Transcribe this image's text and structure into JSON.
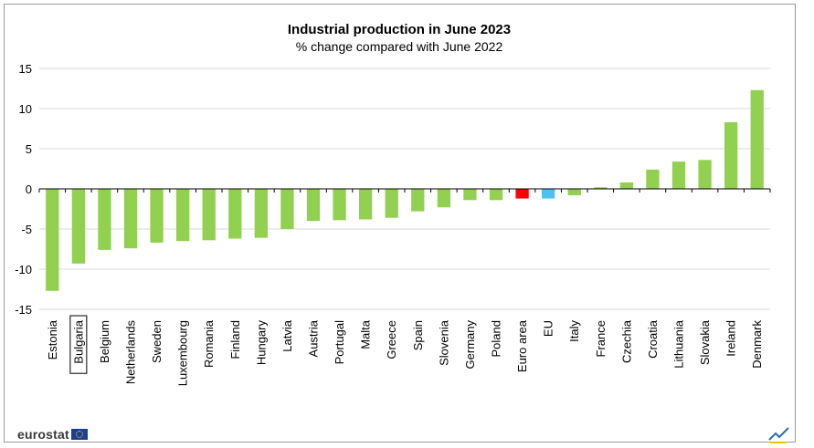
{
  "colors": {
    "default_bar": "#92d050",
    "euro_area_bar": "#ff0000",
    "eu_bar": "#4fc1f0",
    "grid": "#d9d9d9",
    "axis": "#000000",
    "highlight_box": "#000000"
  },
  "logo": {
    "text": "eurostat"
  },
  "icons": {
    "logo_flag": "eu-flag-icon",
    "corner": "pen-check-icon"
  },
  "chart_data": {
    "type": "bar",
    "title": "Industrial production in June 2023",
    "subtitle": "% change compared with June 2022",
    "xlabel": "",
    "ylabel": "",
    "ylim": [
      -15,
      15
    ],
    "yticks": [
      15,
      10,
      5,
      0,
      -5,
      -10,
      -15
    ],
    "grid": true,
    "legend": "none",
    "highlighted_category": "Bulgaria",
    "categories": [
      "Estonia",
      "Bulgaria",
      "Belgium",
      "Netherlands",
      "Sweden",
      "Luxembourg",
      "Romania",
      "Finland",
      "Hungary",
      "Latvia",
      "Austria",
      "Portugal",
      "Malta",
      "Greece",
      "Spain",
      "Slovenia",
      "Germany",
      "Poland",
      "Euro area",
      "EU",
      "Italy",
      "France",
      "Czechia",
      "Croatia",
      "Lithuania",
      "Slovakia",
      "Ireland",
      "Denmark"
    ],
    "values": [
      -12.7,
      -9.3,
      -7.6,
      -7.4,
      -6.7,
      -6.5,
      -6.4,
      -6.2,
      -6.1,
      -5.0,
      -4.0,
      -3.9,
      -3.8,
      -3.6,
      -2.8,
      -2.3,
      -1.4,
      -1.4,
      -1.2,
      -1.2,
      -0.8,
      0.2,
      0.8,
      2.4,
      3.4,
      3.6,
      8.3,
      12.3
    ]
  }
}
